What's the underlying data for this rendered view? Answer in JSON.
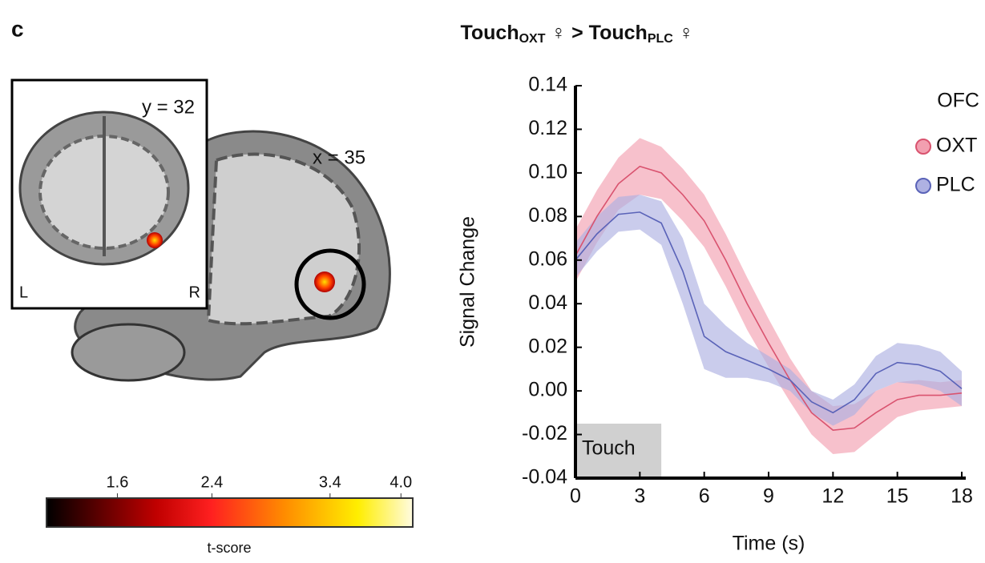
{
  "panel_label": "c",
  "title_parts": [
    "Touch",
    "OXT",
    " ♀ > Touch",
    "PLC",
    " ♀"
  ],
  "brain": {
    "inset_label": "y = 32",
    "slice_label": "x = 35",
    "left": "L",
    "right": "R"
  },
  "colorbar": {
    "label": "t-score",
    "clim": [
      1.0,
      4.1
    ],
    "ticks": [
      1.6,
      2.4,
      3.4,
      {
        "value": 4.0,
        "label": "4.0"
      }
    ]
  },
  "chart_data": {
    "type": "line",
    "xlabel": "Time (s)",
    "ylabel": "Signal Change",
    "x": [
      0,
      1,
      2,
      3,
      4,
      5,
      6,
      7,
      8,
      9,
      10,
      11,
      12,
      13,
      14,
      15,
      16,
      17,
      18
    ],
    "xlim": [
      0,
      18
    ],
    "xticks": [
      0,
      3,
      6,
      9,
      12,
      15,
      18
    ],
    "ylim": [
      -0.04,
      0.14
    ],
    "yticks": [
      -0.04,
      -0.02,
      {
        "value": 0,
        "label": "0.00"
      },
      0.02,
      0.04,
      0.06,
      0.08,
      {
        "value": 0.1,
        "label": "0.10"
      },
      0.12,
      0.14
    ],
    "legend_title": "OFC",
    "legend": "top-right",
    "annotation": {
      "text": "Touch",
      "x": [
        0,
        4
      ]
    },
    "series": [
      {
        "name": "OXT",
        "color": "#d9536f",
        "band_color": "#f29fb0",
        "values": [
          0.062,
          0.08,
          0.095,
          0.103,
          0.1,
          0.09,
          0.078,
          0.06,
          0.04,
          0.022,
          0.005,
          -0.01,
          -0.018,
          -0.017,
          -0.01,
          -0.004,
          -0.002,
          -0.002,
          -0.001
        ],
        "errors": [
          0.012,
          0.012,
          0.012,
          0.013,
          0.012,
          0.012,
          0.012,
          0.012,
          0.012,
          0.011,
          0.01,
          0.01,
          0.011,
          0.011,
          0.01,
          0.008,
          0.007,
          0.006,
          0.006
        ]
      },
      {
        "name": "PLC",
        "color": "#5a63b8",
        "band_color": "#aeb1e2",
        "values": [
          0.06,
          0.072,
          0.081,
          0.082,
          0.077,
          0.055,
          0.025,
          0.018,
          0.014,
          0.01,
          0.005,
          -0.005,
          -0.01,
          -0.004,
          0.008,
          0.013,
          0.012,
          0.009,
          0.001
        ],
        "errors": [
          0.008,
          0.008,
          0.008,
          0.008,
          0.01,
          0.015,
          0.015,
          0.012,
          0.008,
          0.006,
          0.005,
          0.005,
          0.006,
          0.007,
          0.008,
          0.009,
          0.009,
          0.009,
          0.008
        ]
      }
    ]
  }
}
